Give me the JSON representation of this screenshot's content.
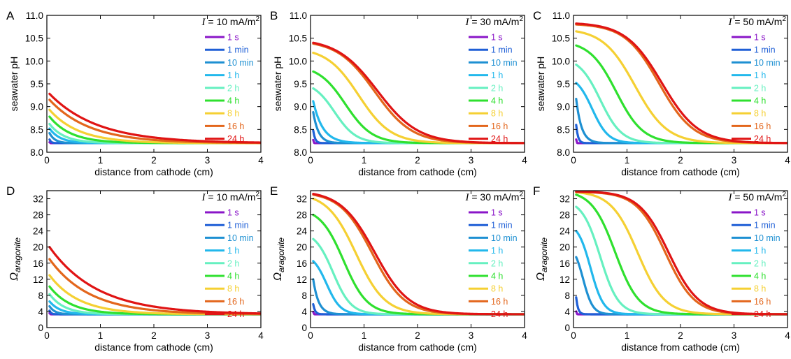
{
  "legend_labels": [
    "1 s",
    "1 min",
    "10 min",
    "1 h",
    "2 h",
    "4 h",
    "8 h",
    "16 h",
    "24 h"
  ],
  "series_colors": [
    "#8a16c8",
    "#1f5fd6",
    "#1e90d2",
    "#22b8ec",
    "#66f0c0",
    "#2fe02f",
    "#f5d033",
    "#e3661c",
    "#e01414"
  ],
  "chart_data": [
    {
      "panel": "A",
      "type": "line",
      "current_label": "= 10 mA/m",
      "current_symbol": "I",
      "current_exp": "2",
      "xlabel": "distance from cathode (cm)",
      "ylabel": "seawater pH",
      "xlim": [
        0,
        4
      ],
      "ylim": [
        8.0,
        11.0
      ],
      "xticks": [
        "0",
        "1",
        "2",
        "3",
        "4"
      ],
      "yticks": [
        "8.0",
        "8.5",
        "9.0",
        "9.5",
        "10.0",
        "10.5",
        "11.0"
      ],
      "baseline": 8.2,
      "series": [
        {
          "name": "1 s",
          "y0": 8.22,
          "x50": 0.01,
          "w": 0.005,
          "shape": "exp"
        },
        {
          "name": "1 min",
          "y0": 8.28,
          "x50": 0.06,
          "w": 0.03,
          "shape": "exp"
        },
        {
          "name": "10 min",
          "y0": 8.42,
          "x50": 0.15,
          "w": 0.1,
          "shape": "exp"
        },
        {
          "name": "1 h",
          "y0": 8.52,
          "x50": 0.3,
          "w": 0.2,
          "shape": "exp"
        },
        {
          "name": "2 h",
          "y0": 8.62,
          "x50": 0.4,
          "w": 0.28,
          "shape": "exp"
        },
        {
          "name": "4 h",
          "y0": 8.78,
          "x50": 0.55,
          "w": 0.4,
          "shape": "exp"
        },
        {
          "name": "8 h",
          "y0": 8.93,
          "x50": 0.75,
          "w": 0.55,
          "shape": "exp"
        },
        {
          "name": "16 h",
          "y0": 9.15,
          "x50": 1.0,
          "w": 0.75,
          "shape": "exp"
        },
        {
          "name": "24 h",
          "y0": 9.28,
          "x50": 1.2,
          "w": 0.9,
          "shape": "exp"
        }
      ]
    },
    {
      "panel": "B",
      "type": "line",
      "current_label": "= 30 mA/m",
      "current_symbol": "I",
      "current_exp": "2",
      "xlabel": "distance from cathode (cm)",
      "ylabel": "seawater pH",
      "xlim": [
        0,
        4
      ],
      "ylim": [
        8.0,
        11.0
      ],
      "xticks": [
        "0",
        "1",
        "2",
        "3",
        "4"
      ],
      "yticks": [
        "8.0",
        "8.5",
        "9.0",
        "9.5",
        "10.0",
        "10.5",
        "11.0"
      ],
      "baseline": 8.2,
      "series": [
        {
          "name": "1 s",
          "y0": 8.27,
          "x50": 0.01,
          "w": 0.006,
          "shape": "exp"
        },
        {
          "name": "1 min",
          "y0": 8.48,
          "x50": 0.06,
          "w": 0.035,
          "shape": "exp"
        },
        {
          "name": "10 min",
          "y0": 8.88,
          "x50": 0.18,
          "w": 0.1,
          "shape": "exp"
        },
        {
          "name": "1 h",
          "y0": 9.12,
          "x50": 0.35,
          "w": 0.18,
          "shape": "exp"
        },
        {
          "name": "2 h",
          "y0": 9.4,
          "x50": 0.45,
          "w": 0.2,
          "shape": "sig"
        },
        {
          "name": "4 h",
          "y0": 9.77,
          "x50": 0.65,
          "w": 0.25,
          "shape": "sig"
        },
        {
          "name": "8 h",
          "y0": 10.18,
          "x50": 0.9,
          "w": 0.3,
          "shape": "sig"
        },
        {
          "name": "16 h",
          "y0": 10.38,
          "x50": 1.2,
          "w": 0.35,
          "shape": "sig"
        }
      ],
      "series_extra": {
        "name": "24 h",
        "y0": 10.4,
        "x50": 1.25,
        "w": 0.38,
        "shape": "sig"
      }
    },
    {
      "panel": "C",
      "type": "line",
      "current_label": "= 50 mA/m",
      "current_symbol": "I",
      "current_exp": "2",
      "xlabel": "distance from cathode (cm)",
      "ylabel": "seawater pH",
      "xlim": [
        0,
        4
      ],
      "ylim": [
        8.0,
        11.0
      ],
      "xticks": [
        "0",
        "1",
        "2",
        "3",
        "4"
      ],
      "yticks": [
        "8.0",
        "8.5",
        "9.0",
        "9.5",
        "10.0",
        "10.5",
        "11.0"
      ],
      "baseline": 8.2,
      "series": [
        {
          "name": "1 s",
          "y0": 8.28,
          "x50": 0.01,
          "w": 0.006,
          "shape": "exp"
        },
        {
          "name": "1 min",
          "y0": 8.6,
          "x50": 0.06,
          "w": 0.035,
          "shape": "exp"
        },
        {
          "name": "10 min",
          "y0": 9.17,
          "x50": 0.2,
          "w": 0.1,
          "shape": "exp"
        },
        {
          "name": "1 h",
          "y0": 9.52,
          "x50": 0.35,
          "w": 0.15,
          "shape": "sig"
        },
        {
          "name": "2 h",
          "y0": 9.92,
          "x50": 0.5,
          "w": 0.2,
          "shape": "sig"
        },
        {
          "name": "4 h",
          "y0": 10.34,
          "x50": 0.8,
          "w": 0.25,
          "shape": "sig"
        },
        {
          "name": "8 h",
          "y0": 10.65,
          "x50": 1.15,
          "w": 0.3,
          "shape": "sig"
        },
        {
          "name": "16 h",
          "y0": 10.8,
          "x50": 1.6,
          "w": 0.32,
          "shape": "sig"
        }
      ],
      "series_extra": {
        "name": "24 h",
        "y0": 10.82,
        "x50": 1.65,
        "w": 0.34,
        "shape": "sig"
      }
    },
    {
      "panel": "D",
      "type": "line",
      "current_label": "= 10 mA/m",
      "current_symbol": "I",
      "current_exp": "2",
      "xlabel": "distance from cathode (cm)",
      "ylabel": "Ω",
      "ylabel_sub": "aragonite",
      "xlim": [
        0,
        4
      ],
      "ylim": [
        0,
        34
      ],
      "xticks": [
        "0",
        "1",
        "2",
        "3",
        "4"
      ],
      "yticks": [
        "0",
        "4",
        "8",
        "12",
        "16",
        "20",
        "24",
        "28",
        "32"
      ],
      "baseline": 3.3,
      "series": [
        {
          "name": "1 s",
          "y0": 3.6,
          "x50": 0.01,
          "w": 0.005,
          "shape": "exp"
        },
        {
          "name": "1 min",
          "y0": 4.2,
          "x50": 0.06,
          "w": 0.03,
          "shape": "exp"
        },
        {
          "name": "10 min",
          "y0": 5.3,
          "x50": 0.15,
          "w": 0.1,
          "shape": "exp"
        },
        {
          "name": "1 h",
          "y0": 6.5,
          "x50": 0.3,
          "w": 0.2,
          "shape": "exp"
        },
        {
          "name": "2 h",
          "y0": 8.3,
          "x50": 0.4,
          "w": 0.28,
          "shape": "exp"
        },
        {
          "name": "4 h",
          "y0": 10.2,
          "x50": 0.55,
          "w": 0.4,
          "shape": "exp"
        },
        {
          "name": "8 h",
          "y0": 13.0,
          "x50": 0.75,
          "w": 0.55,
          "shape": "exp"
        },
        {
          "name": "16 h",
          "y0": 17.0,
          "x50": 1.0,
          "w": 0.75,
          "shape": "exp"
        },
        {
          "name": "24 h",
          "y0": 20.0,
          "x50": 1.2,
          "w": 0.9,
          "shape": "exp"
        }
      ]
    },
    {
      "panel": "E",
      "type": "line",
      "current_label": "= 30 mA/m",
      "current_symbol": "I",
      "current_exp": "2",
      "xlabel": "distance from cathode (cm)",
      "ylabel": "Ω",
      "ylabel_sub": "aragonite",
      "xlim": [
        0,
        4
      ],
      "ylim": [
        0,
        34
      ],
      "xticks": [
        "0",
        "1",
        "2",
        "3",
        "4"
      ],
      "yticks": [
        "0",
        "4",
        "8",
        "12",
        "16",
        "20",
        "24",
        "28",
        "32"
      ],
      "baseline": 3.3,
      "series": [
        {
          "name": "1 s",
          "y0": 3.9,
          "x50": 0.01,
          "w": 0.006,
          "shape": "exp"
        },
        {
          "name": "1 min",
          "y0": 5.8,
          "x50": 0.06,
          "w": 0.035,
          "shape": "exp"
        },
        {
          "name": "10 min",
          "y0": 12.0,
          "x50": 0.18,
          "w": 0.1,
          "shape": "exp"
        },
        {
          "name": "1 h",
          "y0": 16.5,
          "x50": 0.3,
          "w": 0.13,
          "shape": "sig"
        },
        {
          "name": "2 h",
          "y0": 22.0,
          "x50": 0.42,
          "w": 0.17,
          "shape": "sig"
        },
        {
          "name": "4 h",
          "y0": 28.0,
          "x50": 0.62,
          "w": 0.22,
          "shape": "sig"
        },
        {
          "name": "8 h",
          "y0": 32.0,
          "x50": 0.85,
          "w": 0.27,
          "shape": "sig"
        },
        {
          "name": "16 h",
          "y0": 33.0,
          "x50": 1.15,
          "w": 0.3,
          "shape": "sig"
        }
      ],
      "series_extra": {
        "name": "24 h",
        "y0": 33.2,
        "x50": 1.2,
        "w": 0.32,
        "shape": "sig"
      }
    },
    {
      "panel": "F",
      "type": "line",
      "current_label": "= 50 mA/m",
      "current_symbol": "I",
      "current_exp": "2",
      "xlabel": "distance from cathode (cm)",
      "ylabel": "Ω",
      "ylabel_sub": "aragonite",
      "xlim": [
        0,
        4
      ],
      "ylim": [
        0,
        34
      ],
      "xticks": [
        "0",
        "1",
        "2",
        "3",
        "4"
      ],
      "yticks": [
        "0",
        "4",
        "8",
        "12",
        "16",
        "20",
        "24",
        "28",
        "32"
      ],
      "baseline": 3.3,
      "series": [
        {
          "name": "1 s",
          "y0": 4.0,
          "x50": 0.01,
          "w": 0.006,
          "shape": "exp"
        },
        {
          "name": "1 min",
          "y0": 7.5,
          "x50": 0.06,
          "w": 0.035,
          "shape": "exp"
        },
        {
          "name": "10 min",
          "y0": 17.5,
          "x50": 0.18,
          "w": 0.09,
          "shape": "sig"
        },
        {
          "name": "1 h",
          "y0": 24.0,
          "x50": 0.32,
          "w": 0.12,
          "shape": "sig"
        },
        {
          "name": "2 h",
          "y0": 30.0,
          "x50": 0.5,
          "w": 0.17,
          "shape": "sig"
        },
        {
          "name": "4 h",
          "y0": 33.0,
          "x50": 0.78,
          "w": 0.22,
          "shape": "sig"
        },
        {
          "name": "8 h",
          "y0": 33.6,
          "x50": 1.2,
          "w": 0.25,
          "shape": "sig"
        },
        {
          "name": "16 h",
          "y0": 33.7,
          "x50": 1.72,
          "w": 0.27,
          "shape": "sig"
        }
      ],
      "series_extra": {
        "name": "24 h",
        "y0": 33.8,
        "x50": 1.78,
        "w": 0.28,
        "shape": "sig"
      }
    }
  ]
}
